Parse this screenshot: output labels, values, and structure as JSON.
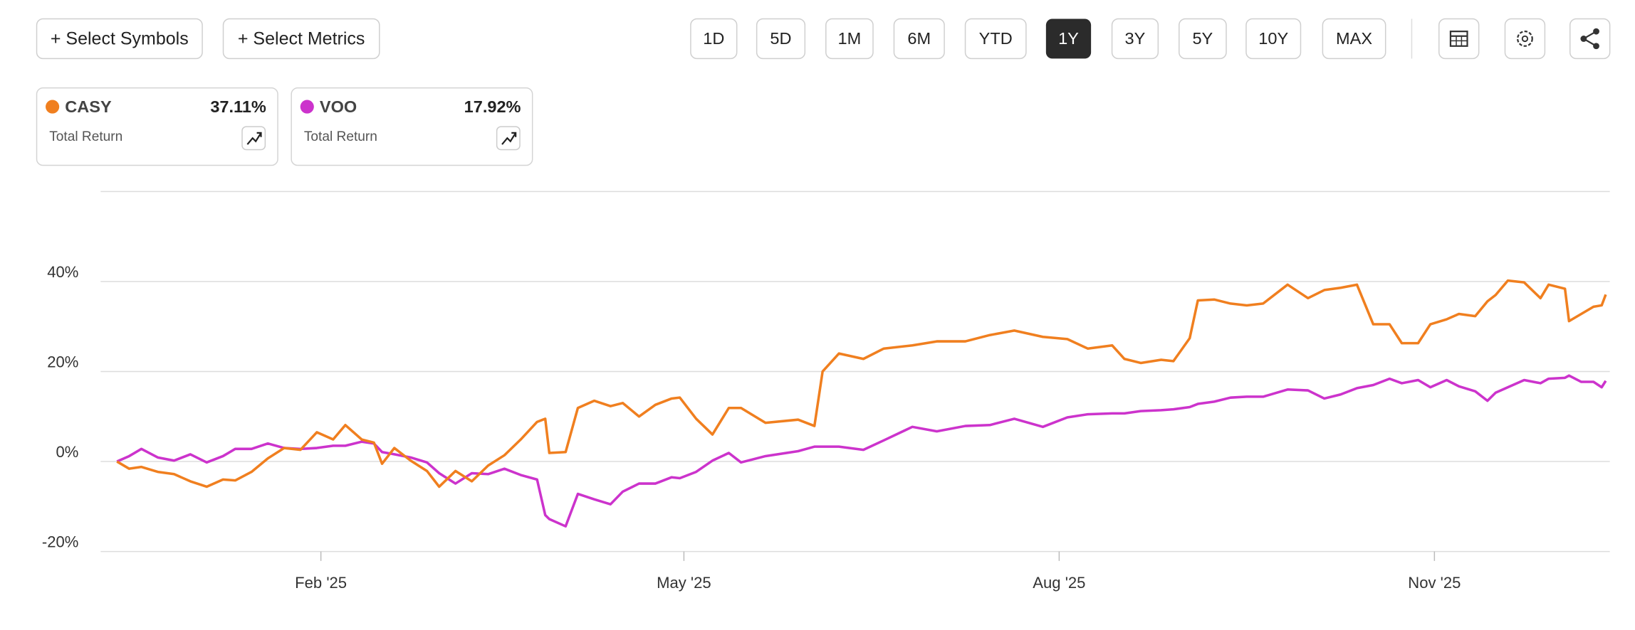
{
  "toolbar": {
    "buttons": [
      "+ Select Symbols",
      "+ Select Metrics"
    ],
    "ranges": [
      "1D",
      "5D",
      "1M",
      "6M",
      "YTD",
      "1Y",
      "3Y",
      "5Y",
      "10Y",
      "MAX"
    ],
    "active_range": 5
  },
  "cards": [
    {
      "value": "37.11%",
      "metric": "Total Return"
    },
    {
      "value": "17.92%",
      "metric": "Total Return"
    }
  ],
  "chart_data": {
    "type": "line",
    "x": [
      12,
      15,
      18,
      22,
      26,
      30,
      34,
      38,
      41,
      45,
      49,
      53,
      57,
      61,
      65,
      68,
      72,
      75,
      77,
      80,
      84,
      88,
      91,
      95,
      99,
      103,
      107,
      111,
      115,
      117,
      118,
      122,
      125,
      129,
      133,
      136,
      140,
      144,
      148,
      150,
      154,
      158,
      162,
      165,
      171,
      179,
      183,
      185,
      189,
      195,
      200,
      207,
      213,
      220,
      226,
      232,
      239,
      245,
      250,
      256,
      259,
      263,
      268,
      271,
      275,
      277,
      281,
      285,
      289,
      293,
      299,
      304,
      308,
      312,
      316,
      320,
      324,
      327,
      331,
      334,
      338,
      341,
      345,
      348,
      350,
      353,
      357,
      361,
      363,
      367,
      368,
      371,
      374,
      376,
      377
    ],
    "series": [
      {
        "name": "CASY",
        "color": "#f07f1f",
        "values": [
          0,
          -1.6,
          -1.2,
          -2.3,
          -2.8,
          -4.4,
          -5.6,
          -4.0,
          -4.2,
          -2.3,
          0.7,
          3.0,
          2.6,
          6.5,
          4.9,
          8.1,
          4.9,
          4.2,
          -0.5,
          3.0,
          0.2,
          -2.1,
          -5.6,
          -2.1,
          -4.4,
          -0.9,
          1.4,
          4.9,
          8.8,
          9.5,
          1.9,
          2.1,
          11.9,
          13.5,
          12.3,
          13.0,
          10.0,
          12.6,
          14.0,
          14.2,
          9.5,
          6.0,
          11.9,
          11.9,
          8.6,
          9.3,
          7.9,
          20.0,
          24.0,
          22.8,
          25.1,
          25.8,
          26.7,
          26.7,
          28.1,
          29.1,
          27.7,
          27.2,
          25.1,
          25.8,
          22.8,
          21.9,
          22.6,
          22.3,
          27.4,
          35.8,
          36.0,
          35.1,
          34.7,
          35.1,
          39.3,
          36.3,
          38.1,
          38.6,
          39.3,
          30.5,
          30.5,
          26.3,
          26.3,
          30.5,
          31.6,
          32.8,
          32.3,
          35.6,
          37.0,
          40.2,
          39.8,
          36.3,
          39.3,
          38.4,
          31.2,
          32.8,
          34.4,
          34.7,
          37.11
        ]
      },
      {
        "name": "VOO",
        "color": "#cc33cc",
        "values": [
          0,
          1.2,
          2.8,
          0.9,
          0.2,
          1.6,
          -0.2,
          1.2,
          2.8,
          2.8,
          4.0,
          3.0,
          2.8,
          3.0,
          3.5,
          3.5,
          4.4,
          4.0,
          2.1,
          1.6,
          0.9,
          -0.2,
          -2.6,
          -4.9,
          -2.6,
          -2.8,
          -1.6,
          -3.0,
          -4.0,
          -11.9,
          -12.8,
          -14.4,
          -7.2,
          -8.4,
          -9.5,
          -6.7,
          -4.9,
          -4.9,
          -3.5,
          -3.7,
          -2.3,
          0.2,
          1.9,
          -0.2,
          1.2,
          2.3,
          3.3,
          3.3,
          3.3,
          2.6,
          4.7,
          7.7,
          6.7,
          7.9,
          8.1,
          9.5,
          7.7,
          9.8,
          10.5,
          10.7,
          10.7,
          11.2,
          11.4,
          11.6,
          12.1,
          12.8,
          13.3,
          14.2,
          14.4,
          14.4,
          16.0,
          15.8,
          14.0,
          14.9,
          16.3,
          17.0,
          18.4,
          17.4,
          18.1,
          16.5,
          18.1,
          16.7,
          15.6,
          13.5,
          15.3,
          16.5,
          18.1,
          17.4,
          18.4,
          18.6,
          19.1,
          17.7,
          17.7,
          16.5,
          17.92
        ]
      }
    ],
    "xlim": [
      8,
      378
    ],
    "xticks": [
      {
        "value": 62,
        "label": "Feb '25"
      },
      {
        "value": 151,
        "label": "May '25"
      },
      {
        "value": 243,
        "label": "Aug '25"
      },
      {
        "value": 335,
        "label": "Nov '25"
      }
    ],
    "ylim": [
      -20,
      60
    ],
    "yticks": [
      {
        "value": -20,
        "label": "-20%"
      },
      {
        "value": 0,
        "label": "0%"
      },
      {
        "value": 20,
        "label": "20%"
      },
      {
        "value": 40,
        "label": "40%"
      }
    ],
    "grid": true
  }
}
